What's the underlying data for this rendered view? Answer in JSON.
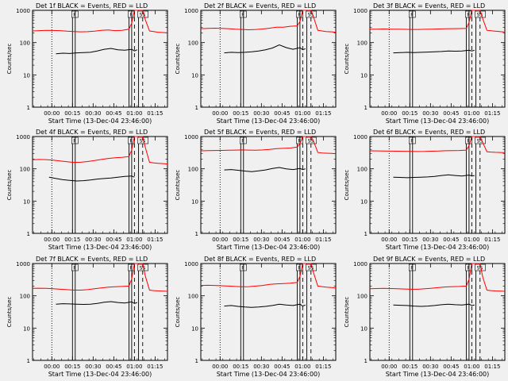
{
  "common": {
    "xlabel": "Start Time (13-Dec-04 23:46:00)",
    "ylabel": "Counts/sec",
    "xtick_labels": [
      "00:00",
      "00:15",
      "00:30",
      "00:45",
      "01:00",
      "01:15"
    ],
    "xtick_minutes": [
      14,
      29,
      44,
      59,
      74,
      89
    ],
    "ytick_labels": [
      "1",
      "10",
      "100",
      "1000"
    ],
    "ytick_values": [
      1,
      10,
      100,
      1000
    ],
    "xlim_minutes": [
      0,
      98
    ],
    "ylim": [
      1,
      1000
    ],
    "y_scale": "log",
    "colors": {
      "events": "#000000",
      "lld": "#ff0000",
      "background": "#f0f0f0"
    },
    "markers": [
      {
        "minutes": 14,
        "style": "dotted",
        "label": ""
      },
      {
        "minutes": 29,
        "style": "solid",
        "label": "F"
      },
      {
        "minutes": 31,
        "style": "solid",
        "label": ""
      },
      {
        "minutes": 70,
        "style": "solid",
        "label": "F"
      },
      {
        "minutes": 72,
        "style": "solid",
        "label": ""
      },
      {
        "minutes": 74,
        "style": "dashed",
        "label": ""
      },
      {
        "minutes": 77,
        "style": "solid",
        "label": "SS"
      },
      {
        "minutes": 80,
        "style": "dashed",
        "label": ""
      }
    ]
  },
  "chart_data": [
    {
      "type": "line",
      "title": "Det 1f BLACK = Events, RED = LLD",
      "series": [
        {
          "name": "Events",
          "x": [
            17,
            22,
            27,
            32,
            37,
            42,
            47,
            52,
            57,
            62,
            67,
            72,
            74,
            76
          ],
          "values": [
            45,
            47,
            46,
            48,
            49,
            50,
            55,
            62,
            66,
            60,
            58,
            62,
            55,
            60
          ]
        },
        {
          "name": "LLD",
          "x": [
            0,
            5,
            10,
            15,
            20,
            25,
            30,
            35,
            40,
            45,
            50,
            55,
            60,
            65,
            70,
            72,
            74,
            76,
            78,
            80,
            82,
            85,
            88,
            91,
            95,
            98
          ],
          "values": [
            230,
            235,
            240,
            238,
            235,
            225,
            220,
            215,
            218,
            225,
            240,
            245,
            235,
            240,
            260,
            400,
            1000,
            1000,
            1000,
            1000,
            500,
            230,
            220,
            210,
            205,
            200
          ]
        }
      ]
    },
    {
      "type": "line",
      "title": "Det 2f BLACK = Events, RED = LLD",
      "series": [
        {
          "name": "Events",
          "x": [
            17,
            22,
            27,
            32,
            37,
            42,
            47,
            52,
            57,
            62,
            67,
            72,
            74,
            76
          ],
          "values": [
            48,
            50,
            49,
            50,
            52,
            55,
            60,
            68,
            85,
            70,
            62,
            70,
            60,
            65
          ]
        },
        {
          "name": "LLD",
          "x": [
            0,
            5,
            10,
            15,
            20,
            25,
            30,
            35,
            40,
            45,
            50,
            55,
            60,
            65,
            70,
            72,
            74,
            76,
            78,
            80,
            82,
            85,
            88,
            91,
            95,
            98
          ],
          "values": [
            270,
            275,
            280,
            275,
            270,
            260,
            255,
            250,
            255,
            265,
            280,
            300,
            300,
            320,
            330,
            450,
            1000,
            1000,
            1000,
            1000,
            600,
            240,
            230,
            220,
            215,
            210
          ]
        }
      ]
    },
    {
      "type": "line",
      "title": "Det 3f BLACK = Events, RED = LLD",
      "series": [
        {
          "name": "Events",
          "x": [
            17,
            22,
            27,
            32,
            37,
            42,
            47,
            52,
            57,
            62,
            67,
            72,
            74,
            76
          ],
          "values": [
            48,
            49,
            50,
            49,
            50,
            51,
            52,
            53,
            55,
            54,
            55,
            58,
            55,
            58
          ]
        },
        {
          "name": "LLD",
          "x": [
            0,
            5,
            10,
            15,
            20,
            25,
            30,
            35,
            40,
            45,
            50,
            55,
            60,
            65,
            70,
            72,
            74,
            76,
            78,
            80,
            82,
            85,
            88,
            91,
            95,
            98
          ],
          "values": [
            260,
            262,
            265,
            262,
            260,
            258,
            255,
            255,
            258,
            262,
            265,
            268,
            270,
            272,
            275,
            420,
            1000,
            1000,
            1000,
            1000,
            550,
            240,
            232,
            225,
            218,
            212
          ]
        }
      ]
    },
    {
      "type": "line",
      "title": "Det 4f BLACK = Events, RED = LLD",
      "series": [
        {
          "name": "Events",
          "x": [
            12,
            17,
            22,
            27,
            32,
            37,
            42,
            47,
            52,
            57,
            62,
            67,
            72,
            74
          ],
          "values": [
            55,
            50,
            46,
            44,
            42,
            43,
            45,
            48,
            50,
            52,
            55,
            58,
            60,
            55
          ]
        },
        {
          "name": "LLD",
          "x": [
            0,
            5,
            10,
            15,
            20,
            25,
            30,
            35,
            40,
            45,
            50,
            55,
            60,
            65,
            70,
            72,
            74,
            76,
            78,
            80,
            82,
            85,
            88,
            91,
            95,
            98
          ],
          "values": [
            190,
            195,
            192,
            185,
            175,
            165,
            158,
            160,
            168,
            180,
            195,
            210,
            220,
            225,
            240,
            380,
            1000,
            1000,
            1000,
            1000,
            450,
            160,
            152,
            148,
            145,
            140
          ]
        }
      ]
    },
    {
      "type": "line",
      "title": "Det 5f BLACK = Events, RED = LLD",
      "series": [
        {
          "name": "Events",
          "x": [
            17,
            22,
            27,
            32,
            37,
            42,
            47,
            52,
            57,
            62,
            67,
            72,
            74,
            76
          ],
          "values": [
            92,
            95,
            90,
            85,
            82,
            86,
            92,
            102,
            110,
            100,
            95,
            102,
            95,
            100
          ]
        },
        {
          "name": "LLD",
          "x": [
            0,
            5,
            10,
            15,
            20,
            25,
            30,
            35,
            40,
            45,
            50,
            55,
            60,
            65,
            70,
            72,
            74,
            76,
            78,
            80,
            82,
            85,
            88,
            91,
            95,
            98
          ],
          "values": [
            360,
            365,
            370,
            372,
            375,
            380,
            385,
            380,
            375,
            385,
            400,
            420,
            430,
            440,
            470,
            600,
            1000,
            1000,
            1000,
            1000,
            700,
            320,
            310,
            305,
            300,
            295
          ]
        }
      ]
    },
    {
      "type": "line",
      "title": "Det 6f BLACK = Events, RED = LLD",
      "series": [
        {
          "name": "Events",
          "x": [
            17,
            22,
            27,
            32,
            37,
            42,
            47,
            52,
            57,
            62,
            67,
            72,
            74,
            76
          ],
          "values": [
            55,
            54,
            53,
            54,
            55,
            56,
            58,
            62,
            65,
            62,
            60,
            64,
            60,
            62
          ]
        },
        {
          "name": "LLD",
          "x": [
            0,
            5,
            10,
            15,
            20,
            25,
            30,
            35,
            40,
            45,
            50,
            55,
            60,
            65,
            70,
            72,
            74,
            76,
            78,
            80,
            82,
            85,
            88,
            91,
            95,
            98
          ],
          "values": [
            360,
            358,
            355,
            352,
            350,
            348,
            345,
            342,
            345,
            350,
            355,
            362,
            365,
            370,
            380,
            520,
            1000,
            1000,
            1000,
            1000,
            650,
            340,
            330,
            325,
            320,
            315
          ]
        }
      ]
    },
    {
      "type": "line",
      "title": "Det 7f BLACK = Events, RED = LLD",
      "series": [
        {
          "name": "Events",
          "x": [
            17,
            22,
            27,
            32,
            37,
            42,
            47,
            52,
            57,
            62,
            67,
            72,
            74,
            76
          ],
          "values": [
            55,
            57,
            56,
            55,
            54,
            55,
            58,
            63,
            66,
            62,
            60,
            65,
            58,
            62
          ]
        },
        {
          "name": "LLD",
          "x": [
            0,
            5,
            10,
            15,
            20,
            25,
            30,
            35,
            40,
            45,
            50,
            55,
            60,
            65,
            70,
            72,
            74,
            76,
            78,
            80,
            82,
            85,
            88,
            91,
            95,
            98
          ],
          "values": [
            170,
            172,
            170,
            165,
            160,
            155,
            150,
            150,
            155,
            165,
            175,
            185,
            190,
            195,
            200,
            330,
            1000,
            1000,
            1000,
            1000,
            400,
            150,
            145,
            142,
            140,
            138
          ]
        }
      ]
    },
    {
      "type": "line",
      "title": "Det 8f BLACK = Events, RED = LLD",
      "series": [
        {
          "name": "Events",
          "x": [
            17,
            22,
            27,
            32,
            37,
            42,
            47,
            52,
            57,
            62,
            67,
            72,
            74,
            76
          ],
          "values": [
            48,
            50,
            47,
            45,
            44,
            45,
            47,
            50,
            55,
            52,
            50,
            55,
            48,
            52
          ]
        },
        {
          "name": "LLD",
          "x": [
            0,
            5,
            10,
            15,
            20,
            25,
            30,
            35,
            40,
            45,
            50,
            55,
            60,
            65,
            70,
            72,
            74,
            76,
            78,
            80,
            82,
            85,
            88,
            91,
            95,
            98
          ],
          "values": [
            210,
            212,
            210,
            205,
            200,
            195,
            190,
            192,
            200,
            210,
            225,
            235,
            240,
            245,
            260,
            400,
            1000,
            1000,
            1000,
            1000,
            500,
            200,
            192,
            185,
            180,
            175
          ]
        }
      ]
    },
    {
      "type": "line",
      "title": "Det 9f BLACK = Events, RED = LLD",
      "series": [
        {
          "name": "Events",
          "x": [
            17,
            22,
            27,
            32,
            37,
            42,
            47,
            52,
            57,
            62,
            67,
            72,
            74,
            76
          ],
          "values": [
            52,
            51,
            50,
            48,
            47,
            48,
            50,
            53,
            55,
            53,
            52,
            55,
            50,
            52
          ]
        },
        {
          "name": "LLD",
          "x": [
            0,
            5,
            10,
            15,
            20,
            25,
            30,
            35,
            40,
            45,
            50,
            55,
            60,
            65,
            70,
            72,
            74,
            76,
            78,
            80,
            82,
            85,
            88,
            91,
            95,
            98
          ],
          "values": [
            165,
            168,
            170,
            168,
            165,
            162,
            160,
            160,
            165,
            172,
            180,
            188,
            192,
            195,
            200,
            320,
            1000,
            1000,
            1000,
            1000,
            380,
            150,
            145,
            142,
            140,
            138
          ]
        }
      ]
    }
  ]
}
